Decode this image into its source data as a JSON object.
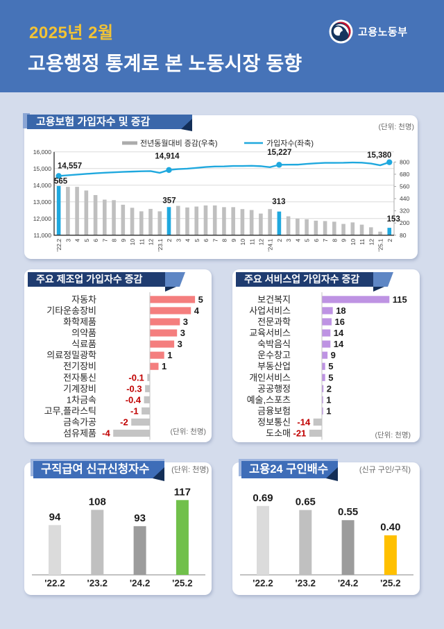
{
  "colors": {
    "page_bg": "#D4DCEC",
    "header_bg": "#4673B8",
    "period_yellow": "#F2C335",
    "accent_cyan": "#1FA8DE",
    "bar_gray": "#BFBFBF",
    "manufacturing_bar_positive": "#F47E7E",
    "services_bar_positive": "#BE93E3",
    "negative_bar_gray": "#C4C4C4",
    "negative_label_red": "#C00000",
    "claims_highlight_green": "#71C04B",
    "vacancy_highlight_amber": "#FFC000",
    "ribbon_navy": "#1F3C70",
    "ribbon_blue": "#3E6DB8",
    "ribbon_fold_dark": "#132E57"
  },
  "header": {
    "period": "2025년 2월",
    "title": "고용행정 통계로 본 노동시장 동향",
    "ministry": "고용노동부",
    "emblem": "taegeuk-government-symbol"
  },
  "panels": {
    "insurance": {
      "title": "고용보험 가입자수 및 증감",
      "unit": "(단위: 천명)",
      "legend": [
        {
          "label": "전년동월대비 증감(우축)",
          "swatch": "gray-bar"
        },
        {
          "label": "가입자수(좌축)",
          "swatch": "cyan-line"
        }
      ]
    },
    "manufacturing": {
      "title": "주요 제조업 가입자수 증감",
      "unit": "(단위: 천명)"
    },
    "services": {
      "title": "주요 서비스업 가입자수 증감",
      "unit": "(단위: 천명)"
    },
    "claims": {
      "title": "구직급여 신규신청자수",
      "unit": "(단위: 천명)"
    },
    "vacancy": {
      "title": "고용24 구인배수",
      "unit": "(신규 구인/구직)"
    }
  },
  "chart_data": [
    {
      "id": "insurance_combo",
      "type": "bar+line",
      "title": "고용보험 가입자수 및 증감",
      "unit": "천명",
      "categories": [
        "'22.2",
        "3",
        "4",
        "5",
        "6",
        "7",
        "8",
        "9",
        "10",
        "11",
        "12",
        "'23.1",
        "2",
        "3",
        "4",
        "5",
        "6",
        "7",
        "8",
        "9",
        "10",
        "11",
        "12",
        "'24.1",
        "2",
        "3",
        "4",
        "5",
        "6",
        "7",
        "8",
        "9",
        "10",
        "11",
        "12",
        "'25.1",
        "2"
      ],
      "series": [
        {
          "name": "전년동월대비 증감(우축)",
          "type": "bar",
          "axis": "right",
          "values": [
            565,
            556,
            556,
            520,
            475,
            430,
            425,
            380,
            350,
            315,
            339,
            315,
            357,
            369,
            353,
            362,
            373,
            373,
            356,
            356,
            337,
            328,
            293,
            337,
            313,
            266,
            243,
            237,
            223,
            219,
            213,
            191,
            206,
            184,
            158,
            115,
            153
          ]
        },
        {
          "name": "가입자수(좌축)",
          "type": "line",
          "axis": "left",
          "values": [
            14557,
            14600,
            14640,
            14680,
            14720,
            14750,
            14775,
            14800,
            14820,
            14840,
            14850,
            14745,
            14914,
            14969,
            14993,
            15042,
            15093,
            15123,
            15131,
            15156,
            15157,
            15168,
            15143,
            15082,
            15227,
            15235,
            15236,
            15279,
            15316,
            15342,
            15344,
            15347,
            15363,
            15352,
            15301,
            15197,
            15380
          ]
        }
      ],
      "highlight_indices": [
        0,
        12,
        24,
        36
      ],
      "annotations": {
        "line_labels": [
          "14,557",
          "14,914",
          "15,227",
          "15,380"
        ],
        "bar_labels": [
          "565",
          "357",
          "313",
          "153"
        ]
      },
      "left_axis": {
        "min": 11000,
        "max": 16000,
        "step": 1000,
        "labels": [
          "11,000",
          "12,000",
          "13,000",
          "14,000",
          "15,000",
          "16,000"
        ]
      },
      "right_axis": {
        "min": 80,
        "max": 800,
        "step": 120,
        "labels": [
          "80",
          "200",
          "320",
          "440",
          "560",
          "680",
          "800"
        ]
      },
      "grid": true,
      "legend_position": "top"
    },
    {
      "id": "manufacturing",
      "type": "bar",
      "orientation": "horizontal",
      "title": "주요 제조업 가입자수 증감",
      "unit": "천명",
      "categories": [
        "자동차",
        "기타운송장비",
        "화학제품",
        "의약품",
        "식료품",
        "의료정밀광학",
        "전기장비",
        "전자통신",
        "기계장비",
        "1차금속",
        "고무,플라스틱",
        "금속가공",
        "섬유제품"
      ],
      "values": [
        5,
        4,
        3,
        3,
        3,
        1,
        1,
        -0.1,
        -0.3,
        -0.4,
        -1,
        -2,
        -4
      ],
      "labels": [
        "5",
        "4",
        "3",
        "3",
        "3",
        "1",
        "1",
        "-0.1",
        "-0.3",
        "-0.4",
        "-1",
        "-2",
        "-4"
      ]
    },
    {
      "id": "services",
      "type": "bar",
      "orientation": "horizontal",
      "title": "주요 서비스업 가입자수 증감",
      "unit": "천명",
      "categories": [
        "보건복지",
        "사업서비스",
        "전문과학",
        "교육서비스",
        "숙박음식",
        "운수창고",
        "부동산업",
        "개인서비스",
        "공공행정",
        "예술,스포츠",
        "금융보험",
        "정보통신",
        "도소매"
      ],
      "values": [
        115,
        18,
        16,
        14,
        14,
        9,
        5,
        5,
        2,
        1,
        1,
        -14,
        -21
      ],
      "labels": [
        "115",
        "18",
        "16",
        "14",
        "14",
        "9",
        "5",
        "5",
        "2",
        "1",
        "1",
        "-14",
        "-21"
      ]
    },
    {
      "id": "claims",
      "type": "bar",
      "orientation": "vertical",
      "title": "구직급여 신규신청자수",
      "unit": "천명",
      "categories": [
        "'22.2",
        "'23.2",
        "'24.2",
        "'25.2"
      ],
      "values": [
        94,
        108,
        93,
        117
      ],
      "labels": [
        "94",
        "108",
        "93",
        "117"
      ],
      "bar_colors": [
        "#DBDBDB",
        "#C0C0C0",
        "#9C9C9C",
        "#71C04B"
      ]
    },
    {
      "id": "vacancy",
      "type": "bar",
      "orientation": "vertical",
      "title": "고용24 구인배수",
      "unit": "신규 구인/구직",
      "categories": [
        "'22.2",
        "'23.2",
        "'24.2",
        "'25.2"
      ],
      "values": [
        0.69,
        0.65,
        0.55,
        0.4
      ],
      "labels": [
        "0.69",
        "0.65",
        "0.55",
        "0.40"
      ],
      "bar_colors": [
        "#DBDBDB",
        "#C0C0C0",
        "#9C9C9C",
        "#FFC000"
      ]
    }
  ]
}
